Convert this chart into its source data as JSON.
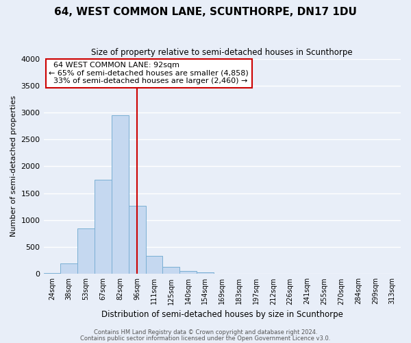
{
  "title": "64, WEST COMMON LANE, SCUNTHORPE, DN17 1DU",
  "subtitle": "Size of property relative to semi-detached houses in Scunthorpe",
  "xlabel": "Distribution of semi-detached houses by size in Scunthorpe",
  "ylabel": "Number of semi-detached properties",
  "bar_color": "#c5d8f0",
  "bar_edge_color": "#7aafd4",
  "background_color": "#e8eef8",
  "grid_color": "#ffffff",
  "ylim": [
    0,
    4000
  ],
  "yticks": [
    0,
    500,
    1000,
    1500,
    2000,
    2500,
    3000,
    3500,
    4000
  ],
  "bin_labels": [
    "24sqm",
    "38sqm",
    "53sqm",
    "67sqm",
    "82sqm",
    "96sqm",
    "111sqm",
    "125sqm",
    "140sqm",
    "154sqm",
    "169sqm",
    "183sqm",
    "197sqm",
    "212sqm",
    "226sqm",
    "241sqm",
    "255sqm",
    "270sqm",
    "284sqm",
    "299sqm",
    "313sqm"
  ],
  "bin_values": [
    15,
    200,
    840,
    1750,
    2950,
    1270,
    330,
    130,
    60,
    30,
    0,
    0,
    0,
    0,
    0,
    0,
    0,
    0,
    0,
    0,
    0
  ],
  "property_bin_index": 5,
  "annotation_title": "64 WEST COMMON LANE: 92sqm",
  "annotation_line1": "← 65% of semi-detached houses are smaller (4,858)",
  "annotation_line2": "  33% of semi-detached houses are larger (2,460) →",
  "vline_color": "#cc0000",
  "annotation_box_color": "#ffffff",
  "annotation_box_edge": "#cc0000",
  "footer_line1": "Contains HM Land Registry data © Crown copyright and database right 2024.",
  "footer_line2": "Contains public sector information licensed under the Open Government Licence v3.0."
}
